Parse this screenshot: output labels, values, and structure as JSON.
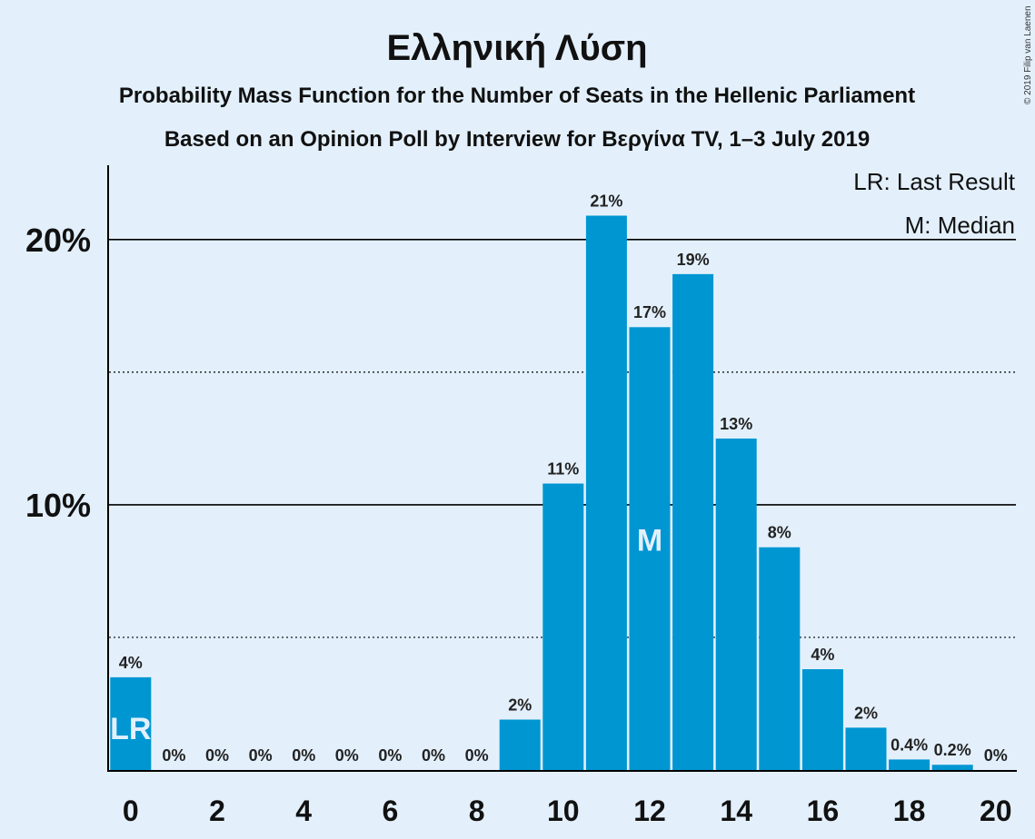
{
  "chart_data": {
    "type": "bar",
    "title": "Ελληνική Λύση",
    "subtitle_lines": [
      "Probability Mass Function for the Number of Seats in the Hellenic Parliament",
      "Based on an Opinion Poll by Interview for Βεργίνα TV, 1–3 July 2019"
    ],
    "x": [
      0,
      1,
      2,
      3,
      4,
      5,
      6,
      7,
      8,
      9,
      10,
      11,
      12,
      13,
      14,
      15,
      16,
      17,
      18,
      19,
      20
    ],
    "values": [
      3.5,
      0,
      0,
      0,
      0,
      0,
      0,
      0,
      0,
      1.9,
      10.8,
      20.9,
      16.7,
      18.7,
      12.5,
      8.4,
      3.8,
      1.6,
      0.4,
      0.2,
      0
    ],
    "data_labels": [
      "4%",
      "0%",
      "0%",
      "0%",
      "0%",
      "0%",
      "0%",
      "0%",
      "0%",
      "2%",
      "11%",
      "21%",
      "17%",
      "19%",
      "13%",
      "8%",
      "4%",
      "2%",
      "0.4%",
      "0.2%",
      "0%"
    ],
    "x_tick_labels": [
      "0",
      "2",
      "4",
      "6",
      "8",
      "10",
      "12",
      "14",
      "16",
      "18",
      "20"
    ],
    "y_tick_labels": [
      "10%",
      "20%"
    ],
    "ylim": [
      0,
      22.8
    ],
    "grid_solid_at": [
      10,
      20
    ],
    "grid_dotted_at": [
      5,
      15
    ],
    "bar_color": "#0096d2",
    "background_color": "#e3f0fc",
    "legend_position": "top-right",
    "legend": [
      "LR: Last Result",
      "M: Median"
    ],
    "markers": [
      {
        "text": "LR",
        "x": 0
      },
      {
        "text": "M",
        "x": 12
      }
    ],
    "copyright": "© 2019 Filip van Laenen"
  }
}
